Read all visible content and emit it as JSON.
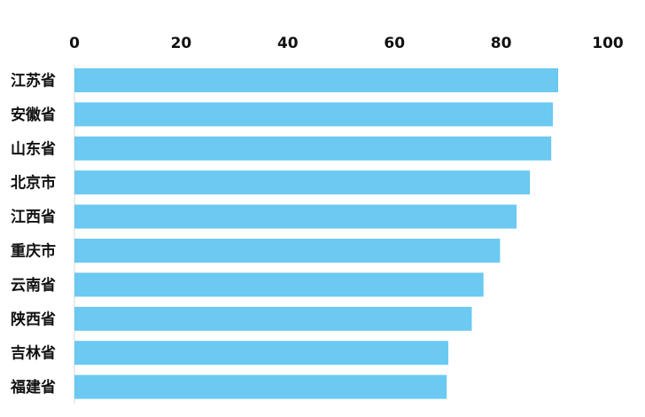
{
  "chart_data": {
    "type": "bar",
    "orientation": "horizontal",
    "categories": [
      "江苏省",
      "安徽省",
      "山东省",
      "北京市",
      "江西省",
      "重庆市",
      "云南省",
      "陕西省",
      "吉林省",
      "福建省"
    ],
    "values": [
      90.7,
      89.7,
      89.4,
      85.4,
      82.9,
      79.8,
      76.7,
      74.5,
      70.1,
      69.8
    ],
    "xlim": [
      0,
      100
    ],
    "xticks": [
      0,
      20,
      40,
      60,
      80,
      100
    ],
    "x_axis_position": "top",
    "grid": false,
    "legend": "none",
    "title": "",
    "xlabel": "",
    "ylabel": "",
    "colors": {
      "bar": "#6bc9f2",
      "text": "#111111",
      "axis": "#d9d9d9"
    }
  }
}
